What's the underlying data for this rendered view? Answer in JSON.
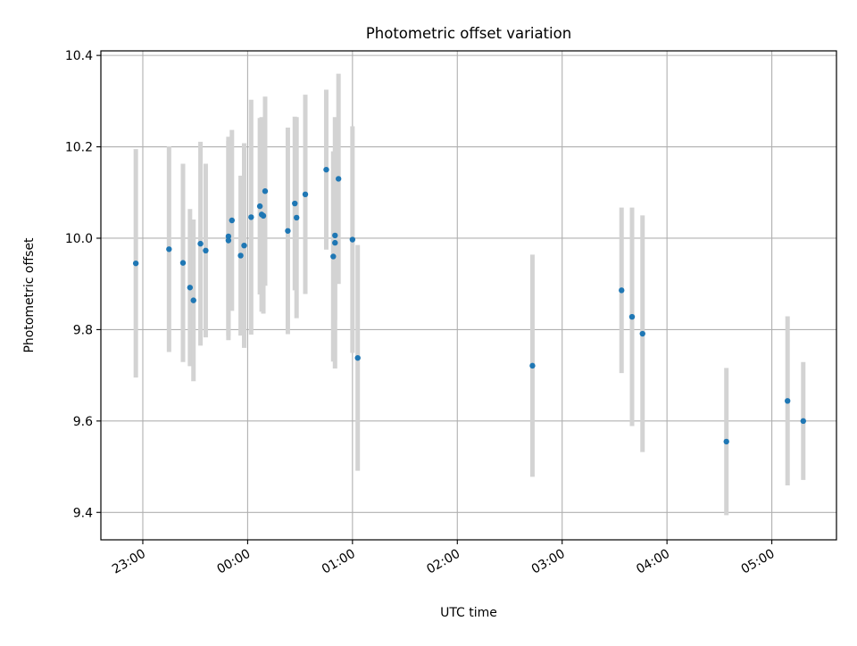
{
  "chart_data": {
    "type": "scatter",
    "title": "Photometric offset variation",
    "xlabel": "UTC time",
    "ylabel": "Photometric offset",
    "x_axis": {
      "kind": "time",
      "start": "22:36",
      "end": "05:37",
      "tick_labels": [
        "23:00",
        "00:00",
        "01:00",
        "02:00",
        "03:00",
        "04:00",
        "05:00"
      ]
    },
    "ylim": [
      9.34,
      10.41
    ],
    "yticks": [
      "9.4",
      "9.6",
      "9.8",
      "10.0",
      "10.2",
      "10.4"
    ],
    "grid": true,
    "colors": {
      "marker": "#1f77b4",
      "errorbar": "#d3d3d3",
      "grid": "#b0b0b0"
    },
    "series": [
      {
        "points": [
          {
            "t": "22:56",
            "y": 9.945,
            "err": 0.25
          },
          {
            "t": "23:15",
            "y": 9.976,
            "err": 0.225
          },
          {
            "t": "23:23",
            "y": 9.946,
            "err": 0.217
          },
          {
            "t": "23:27",
            "y": 9.892,
            "err": 0.172
          },
          {
            "t": "23:29",
            "y": 9.864,
            "err": 0.177
          },
          {
            "t": "23:33",
            "y": 9.988,
            "err": 0.223
          },
          {
            "t": "23:36",
            "y": 9.973,
            "err": 0.19
          },
          {
            "t": "23:49",
            "y": 10.004,
            "err": 0.218
          },
          {
            "t": "23:49",
            "y": 9.995,
            "err": 0.218
          },
          {
            "t": "23:51",
            "y": 10.039,
            "err": 0.198
          },
          {
            "t": "23:56",
            "y": 9.962,
            "err": 0.175
          },
          {
            "t": "23:58",
            "y": 9.984,
            "err": 0.224
          },
          {
            "t": "00:02",
            "y": 10.046,
            "err": 0.257
          },
          {
            "t": "00:07",
            "y": 10.07,
            "err": 0.193
          },
          {
            "t": "00:08",
            "y": 10.052,
            "err": 0.213
          },
          {
            "t": "00:09",
            "y": 10.049,
            "err": 0.214
          },
          {
            "t": "00:10",
            "y": 10.103,
            "err": 0.207
          },
          {
            "t": "00:23",
            "y": 10.016,
            "err": 0.226
          },
          {
            "t": "00:27",
            "y": 10.076,
            "err": 0.19
          },
          {
            "t": "00:28",
            "y": 10.045,
            "err": 0.22
          },
          {
            "t": "00:33",
            "y": 10.096,
            "err": 0.218
          },
          {
            "t": "00:45",
            "y": 10.15,
            "err": 0.175
          },
          {
            "t": "00:49",
            "y": 9.96,
            "err": 0.23
          },
          {
            "t": "00:50",
            "y": 10.006,
            "err": 0.185
          },
          {
            "t": "00:50",
            "y": 9.99,
            "err": 0.275
          },
          {
            "t": "00:52",
            "y": 10.13,
            "err": 0.23
          },
          {
            "t": "01:00",
            "y": 9.997,
            "err": 0.248
          },
          {
            "t": "01:03",
            "y": 9.738,
            "err": 0.247
          },
          {
            "t": "02:43",
            "y": 9.721,
            "err": 0.243
          },
          {
            "t": "03:34",
            "y": 9.886,
            "err": 0.181
          },
          {
            "t": "03:40",
            "y": 9.828,
            "err": 0.239
          },
          {
            "t": "03:46",
            "y": 9.791,
            "err": 0.259
          },
          {
            "t": "04:34",
            "y": 9.555,
            "err": 0.161
          },
          {
            "t": "05:09",
            "y": 9.644,
            "err": 0.185
          },
          {
            "t": "05:18",
            "y": 9.6,
            "err": 0.129
          }
        ]
      }
    ]
  }
}
